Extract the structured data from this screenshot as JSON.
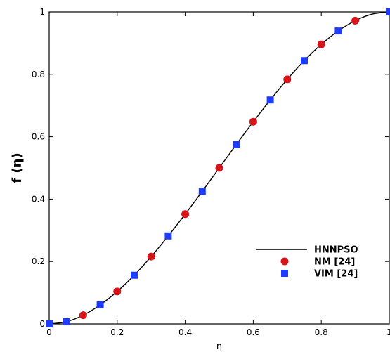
{
  "chart_data": {
    "type": "line",
    "xlabel": "η",
    "ylabel": "f (η)",
    "xlim": [
      0,
      1
    ],
    "ylim": [
      0,
      1
    ],
    "x_ticks": [
      "0",
      "0.2",
      "0.4",
      "0.6",
      "0.8",
      "1"
    ],
    "y_ticks": [
      "0",
      "0.2",
      "0.4",
      "0.6",
      "0.8",
      "1"
    ],
    "grid": false,
    "legend_position": "bottom-right",
    "series": [
      {
        "name": "HNNPSO",
        "style": "line",
        "color": "#000000",
        "x": [
          0,
          0.05,
          0.1,
          0.15,
          0.2,
          0.25,
          0.3,
          0.35,
          0.4,
          0.45,
          0.5,
          0.55,
          0.6,
          0.65,
          0.7,
          0.75,
          0.8,
          0.85,
          0.9,
          0.95,
          1
        ],
        "y": [
          0,
          0.007,
          0.028,
          0.061,
          0.104,
          0.156,
          0.216,
          0.282,
          0.352,
          0.425,
          0.5,
          0.575,
          0.648,
          0.718,
          0.784,
          0.844,
          0.896,
          0.939,
          0.972,
          0.993,
          1
        ]
      },
      {
        "name": "NM [24]",
        "style": "marker",
        "marker": "circle",
        "color": "#d7141a",
        "x": [
          0.1,
          0.2,
          0.3,
          0.4,
          0.5,
          0.6,
          0.7,
          0.8,
          0.9
        ],
        "y": [
          0.028,
          0.104,
          0.216,
          0.352,
          0.5,
          0.648,
          0.784,
          0.896,
          0.972
        ]
      },
      {
        "name": "VIM [24]",
        "style": "marker",
        "marker": "square",
        "color": "#1e3cff",
        "x": [
          0,
          0.05,
          0.15,
          0.25,
          0.35,
          0.45,
          0.55,
          0.65,
          0.75,
          0.85,
          1
        ],
        "y": [
          0,
          0.007,
          0.061,
          0.156,
          0.282,
          0.425,
          0.575,
          0.718,
          0.844,
          0.939,
          1
        ]
      }
    ]
  }
}
